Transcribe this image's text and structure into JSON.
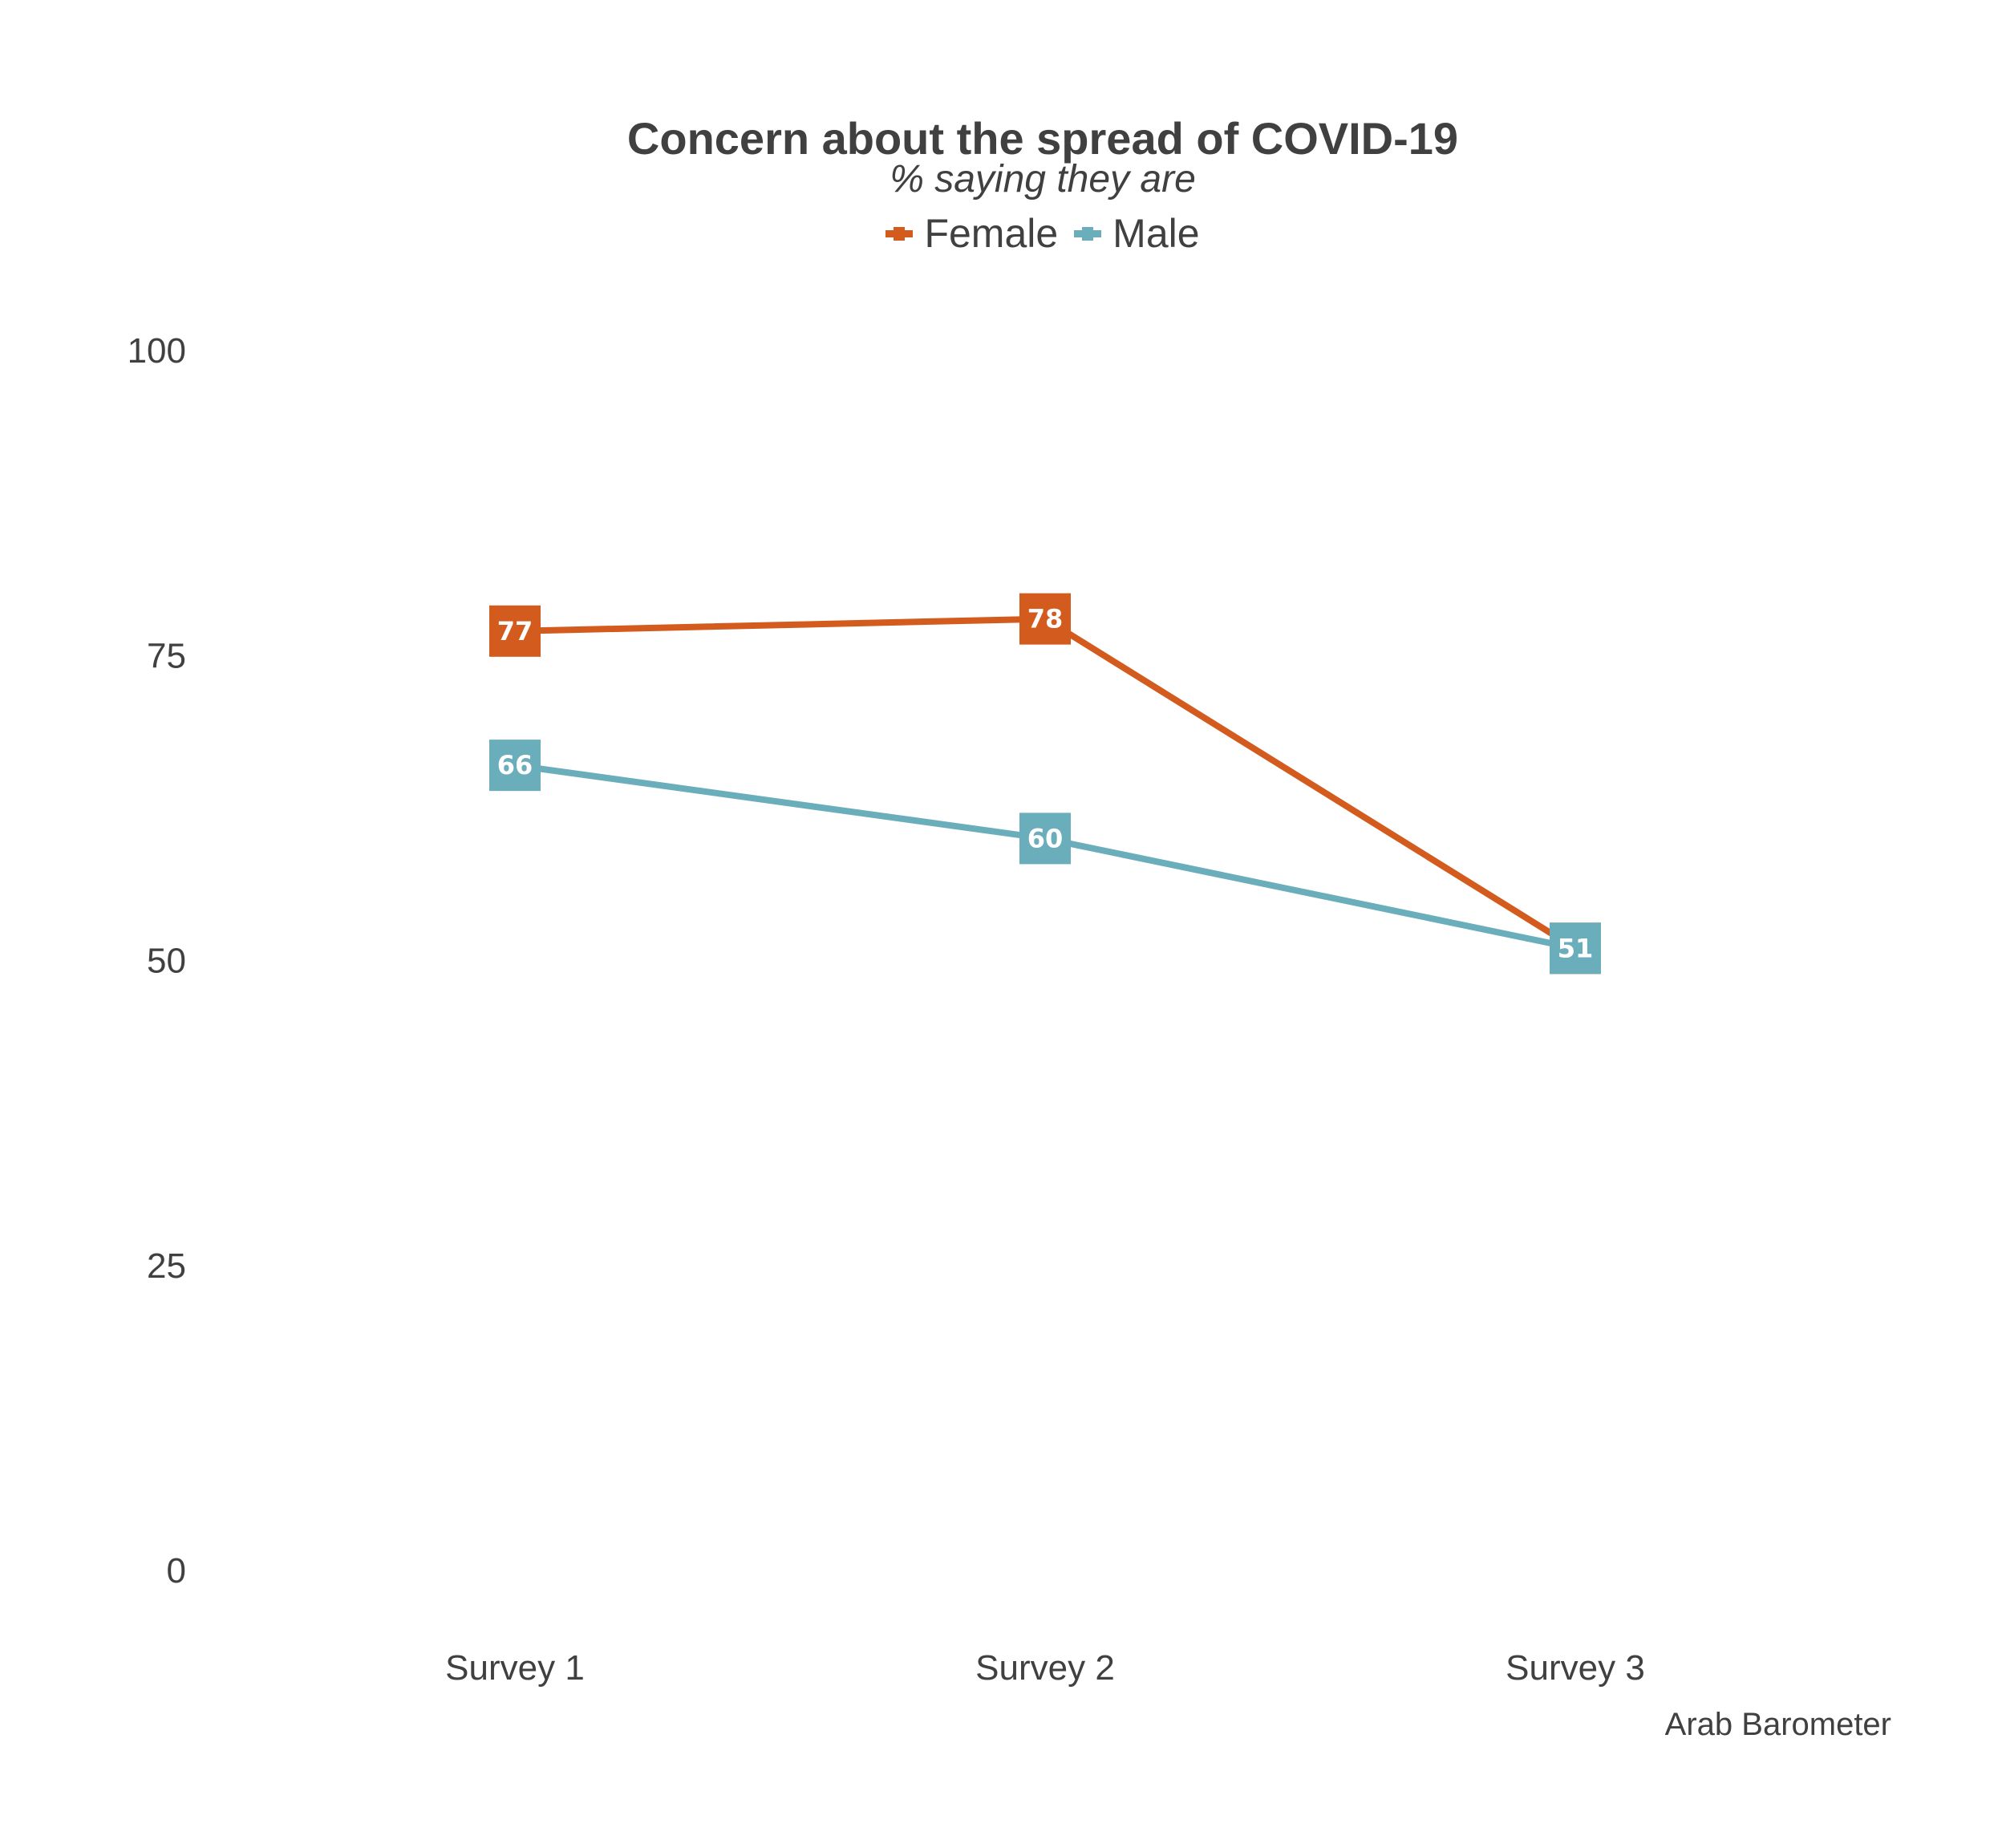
{
  "chart_data": {
    "type": "line",
    "title": "Concern about the spread of COVID-19",
    "subtitle": "% saying they are",
    "caption": "Arab Barometer",
    "categories": [
      "Survey 1",
      "Survey 2",
      "Survey 3"
    ],
    "series": [
      {
        "name": "Female",
        "color": "#D35B1E",
        "values": [
          77,
          78,
          51
        ]
      },
      {
        "name": "Male",
        "color": "#6BAEBB",
        "values": [
          66,
          60,
          51
        ]
      }
    ],
    "y_ticks": [
      0,
      25,
      50,
      75,
      100
    ],
    "ylim": [
      0,
      100
    ],
    "grid": false,
    "legend_position": "top",
    "markers": "square"
  }
}
